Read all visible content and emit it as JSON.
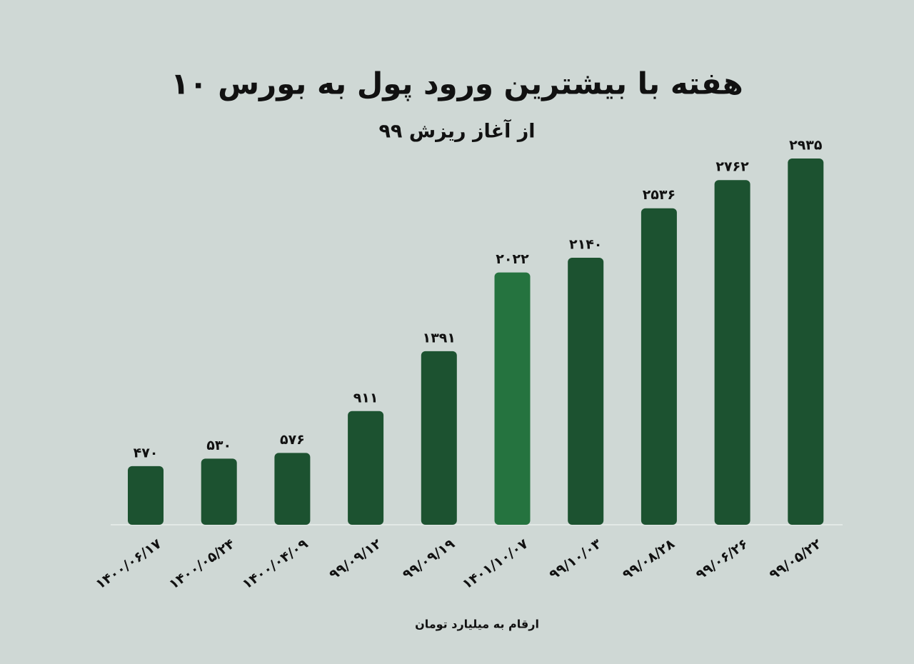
{
  "chart_data": {
    "type": "bar",
    "title": "۱۰ هفته با بیشترین ورود پول به بورس",
    "subtitle": "از آغاز ریزش ۹۹",
    "note": "ارقام به میلیارد تومان",
    "categories": [
      "۱۴۰۰/۰۶/۱۷",
      "۱۴۰۰/۰۵/۲۴",
      "۱۴۰۰/۰۴/۰۹",
      "۹۹/۰۹/۱۲",
      "۹۹/۰۹/۱۹",
      "۱۴۰۱/۱۰/۰۷",
      "۹۹/۱۰/۰۳",
      "۹۹/۰۸/۲۸",
      "۹۹/۰۶/۲۶",
      "۹۹/۰۵/۲۲"
    ],
    "values": [
      470,
      530,
      576,
      911,
      1391,
      2022,
      2140,
      2536,
      2762,
      2935
    ],
    "value_labels": [
      "۴۷۰",
      "۵۳۰",
      "۵۷۶",
      "۹۱۱",
      "۱۳۹۱",
      "۲۰۲۲",
      "۲۱۴۰",
      "۲۵۳۶",
      "۲۷۶۲",
      "۲۹۳۵"
    ],
    "colors": [
      "#1c5230",
      "#1c5230",
      "#1c5230",
      "#1c5230",
      "#1c5230",
      "#25733f",
      "#1c5230",
      "#1c5230",
      "#1c5230",
      "#1c5230"
    ]
  }
}
